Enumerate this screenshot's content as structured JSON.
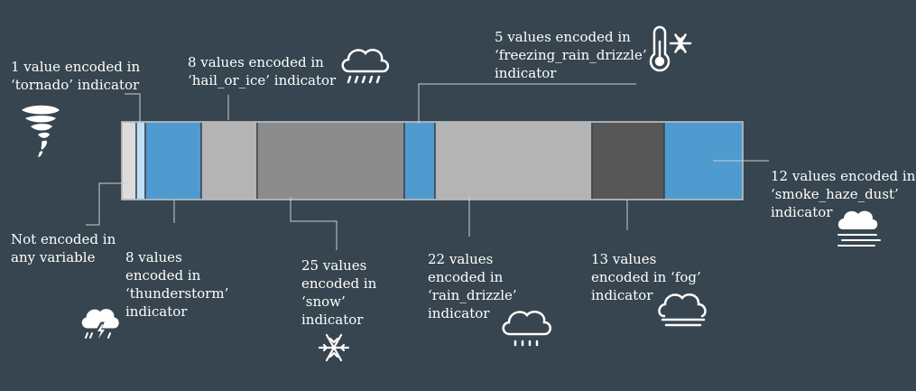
{
  "colors": {
    "background": "#36454f",
    "line": "#c9cfd3",
    "text": "#ffffff",
    "segment_fills": {
      "not_encoded": "#dcdcdc",
      "tornado": "#bfe0f7",
      "thunderstorm": "#4f9acf",
      "hail_or_ice": "#b4b4b4",
      "snow": "#8c8c8c",
      "freezing_rain_drizzle": "#4f9acf",
      "rain_drizzle": "#b4b4b4",
      "fog": "#575757",
      "smoke_haze_dust": "#4f9acf"
    }
  },
  "segments": [
    {
      "key": "not_encoded",
      "name": "not-encoded-segment"
    },
    {
      "key": "tornado",
      "name": "tornado-segment"
    },
    {
      "key": "thunderstorm",
      "name": "thunderstorm-segment"
    },
    {
      "key": "hail_or_ice",
      "name": "hail-or-ice-segment"
    },
    {
      "key": "snow",
      "name": "snow-segment"
    },
    {
      "key": "freezing_rain_drizzle",
      "name": "freezing-rain-drizzle-segment"
    },
    {
      "key": "rain_drizzle",
      "name": "rain-drizzle-segment"
    },
    {
      "key": "fog",
      "name": "fog-segment"
    },
    {
      "key": "smoke_haze_dust",
      "name": "smoke-haze-dust-segment"
    }
  ],
  "labels": {
    "tornado": "1 value encoded in\n‘tornado’ indicator",
    "hail_or_ice": "8 values encoded in\n‘hail_or_ice’ indicator",
    "freezing_rain_drizzle": "5 values encoded in\n‘freezing_rain_drizzle’\nindicator",
    "smoke_haze_dust": "12 values encoded in\n‘smoke_haze_dust’\nindicator",
    "not_encoded": "Not encoded in\nany variable",
    "thunderstorm": "8 values\nencoded in\n‘thunderstorm’\nindicator",
    "snow": "25 values\nencoded in\n‘snow’\nindicator",
    "rain_drizzle": "22 values\nencoded in\n‘rain_drizzle’\nindicator",
    "fog": "13 values\nencoded in ‘fog’\nindicator"
  },
  "icons": [
    "tornado-icon",
    "hail-cloud-icon",
    "thermometer-snowflake-icon",
    "thunderstorm-cloud-icon",
    "snowflake-icon",
    "rain-cloud-icon",
    "fog-cloud-icon",
    "haze-cloud-icon"
  ]
}
